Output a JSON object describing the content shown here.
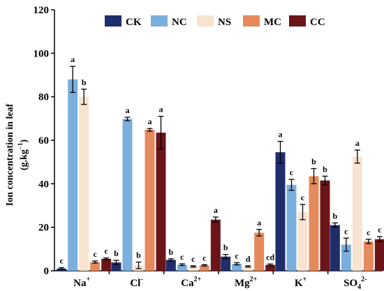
{
  "chart_data": {
    "type": "bar",
    "ylabel_line1": "Ion concentration in leaf",
    "ylabel_line2_main": "(g.kg",
    "ylabel_line2_sup": "−1",
    "ylabel_line2_end": ")",
    "ylim": [
      0,
      120
    ],
    "yticks": [
      "0",
      "20",
      "40",
      "60",
      "80",
      "100",
      "120"
    ],
    "legend_position": "top",
    "grid": false,
    "categories": [
      {
        "base": "Na",
        "sup": "+",
        "sub": ""
      },
      {
        "base": "Cl",
        "sup": "-",
        "sub": ""
      },
      {
        "base": "Ca",
        "sup": "2+",
        "sub": ""
      },
      {
        "base": "Mg",
        "sup": "2+",
        "sub": ""
      },
      {
        "base": "K",
        "sup": "+",
        "sub": ""
      },
      {
        "base": "SO",
        "sub": "4",
        "sup": "2-"
      }
    ],
    "series": [
      {
        "name": "CK",
        "color": "#1f2d6b",
        "values": [
          1.0,
          3.8,
          5.0,
          6.5,
          54.5,
          21.0
        ],
        "errors": [
          0.4,
          1.0,
          0.5,
          1.0,
          5.0,
          1.0
        ],
        "letters": [
          "c",
          "b",
          "b",
          "b",
          "a",
          "b"
        ]
      },
      {
        "name": "NC",
        "color": "#7aaedc",
        "values": [
          88.0,
          69.8,
          2.8,
          3.2,
          39.5,
          12.0
        ],
        "errors": [
          6.0,
          0.8,
          0.4,
          0.5,
          2.5,
          3.0
        ],
        "letters": [
          "a",
          "a",
          "c",
          "c",
          "c",
          "c"
        ]
      },
      {
        "name": "NS",
        "color": "#f7e3cf",
        "values": [
          80.0,
          2.5,
          2.0,
          2.0,
          27.0,
          52.5
        ],
        "errors": [
          3.5,
          1.5,
          0.3,
          0.3,
          3.5,
          3.0
        ],
        "letters": [
          "b",
          "b",
          "c",
          "d",
          "c",
          "a"
        ]
      },
      {
        "name": "MC",
        "color": "#e48a5c",
        "values": [
          4.0,
          64.8,
          2.5,
          17.5,
          43.5,
          13.5
        ],
        "errors": [
          0.5,
          0.6,
          0.3,
          1.5,
          3.5,
          1.0
        ],
        "letters": [
          "c",
          "a",
          "c",
          "a",
          "b",
          "c"
        ]
      },
      {
        "name": "CC",
        "color": "#6b1518",
        "values": [
          5.5,
          63.5,
          23.5,
          2.7,
          41.5,
          14.5
        ],
        "errors": [
          0.4,
          7.5,
          1.2,
          0.4,
          2.0,
          1.2
        ],
        "letters": [
          "c",
          "a",
          "a",
          "cd",
          "b",
          "c"
        ]
      }
    ]
  }
}
